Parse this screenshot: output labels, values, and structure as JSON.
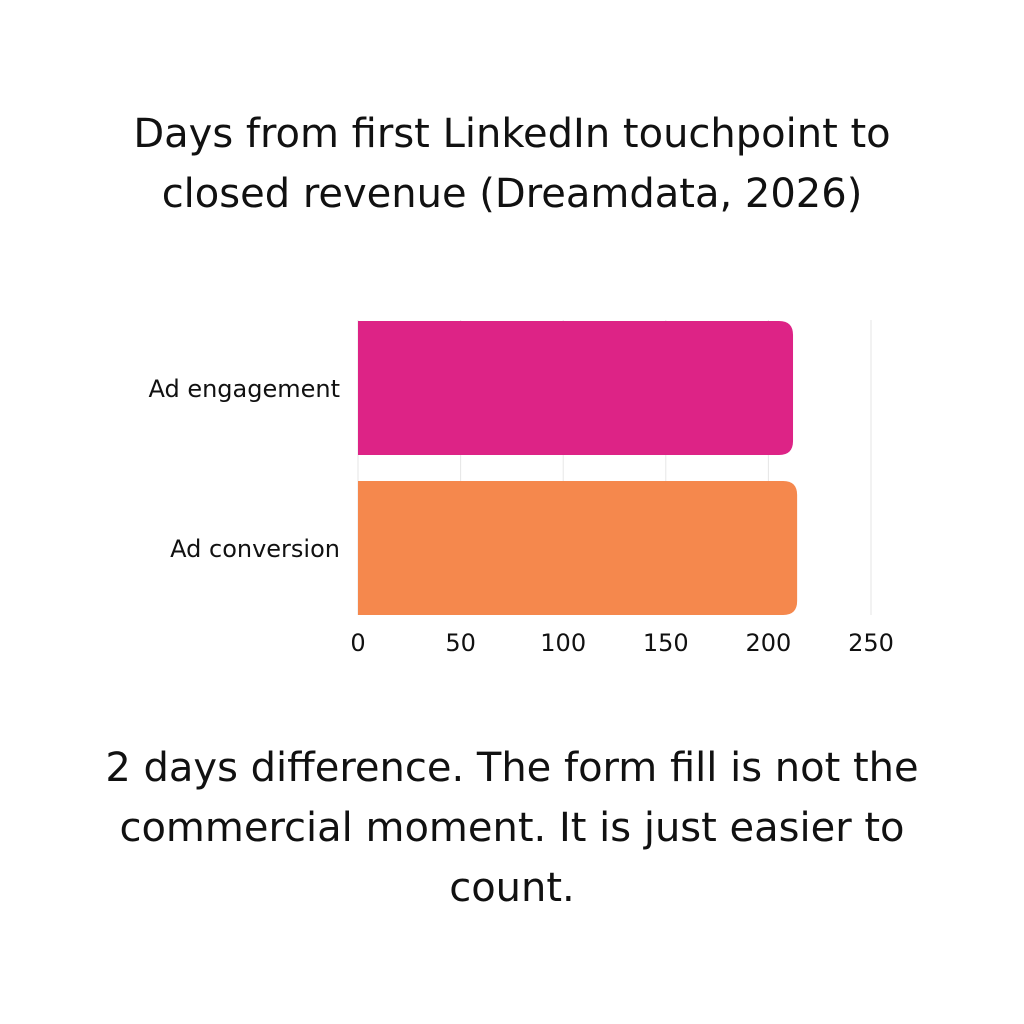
{
  "title_lines": [
    "Days from first LinkedIn touchpoint to",
    "closed revenue (Dreamdata, 2026)"
  ],
  "caption": "2 days difference. The form fill is not the commercial moment. It is just easier to count.",
  "chart_data": {
    "type": "bar",
    "orientation": "horizontal",
    "title": "Days from first LinkedIn touchpoint to closed revenue (Dreamdata, 2026)",
    "categories": [
      "Ad engagement",
      "Ad conversion"
    ],
    "values": [
      212,
      214
    ],
    "colors": [
      "#DD2386",
      "#F5884D"
    ],
    "xlim": [
      0,
      250
    ],
    "xticks": [
      0,
      50,
      100,
      150,
      200,
      250
    ],
    "grid": true,
    "legend": "none"
  }
}
